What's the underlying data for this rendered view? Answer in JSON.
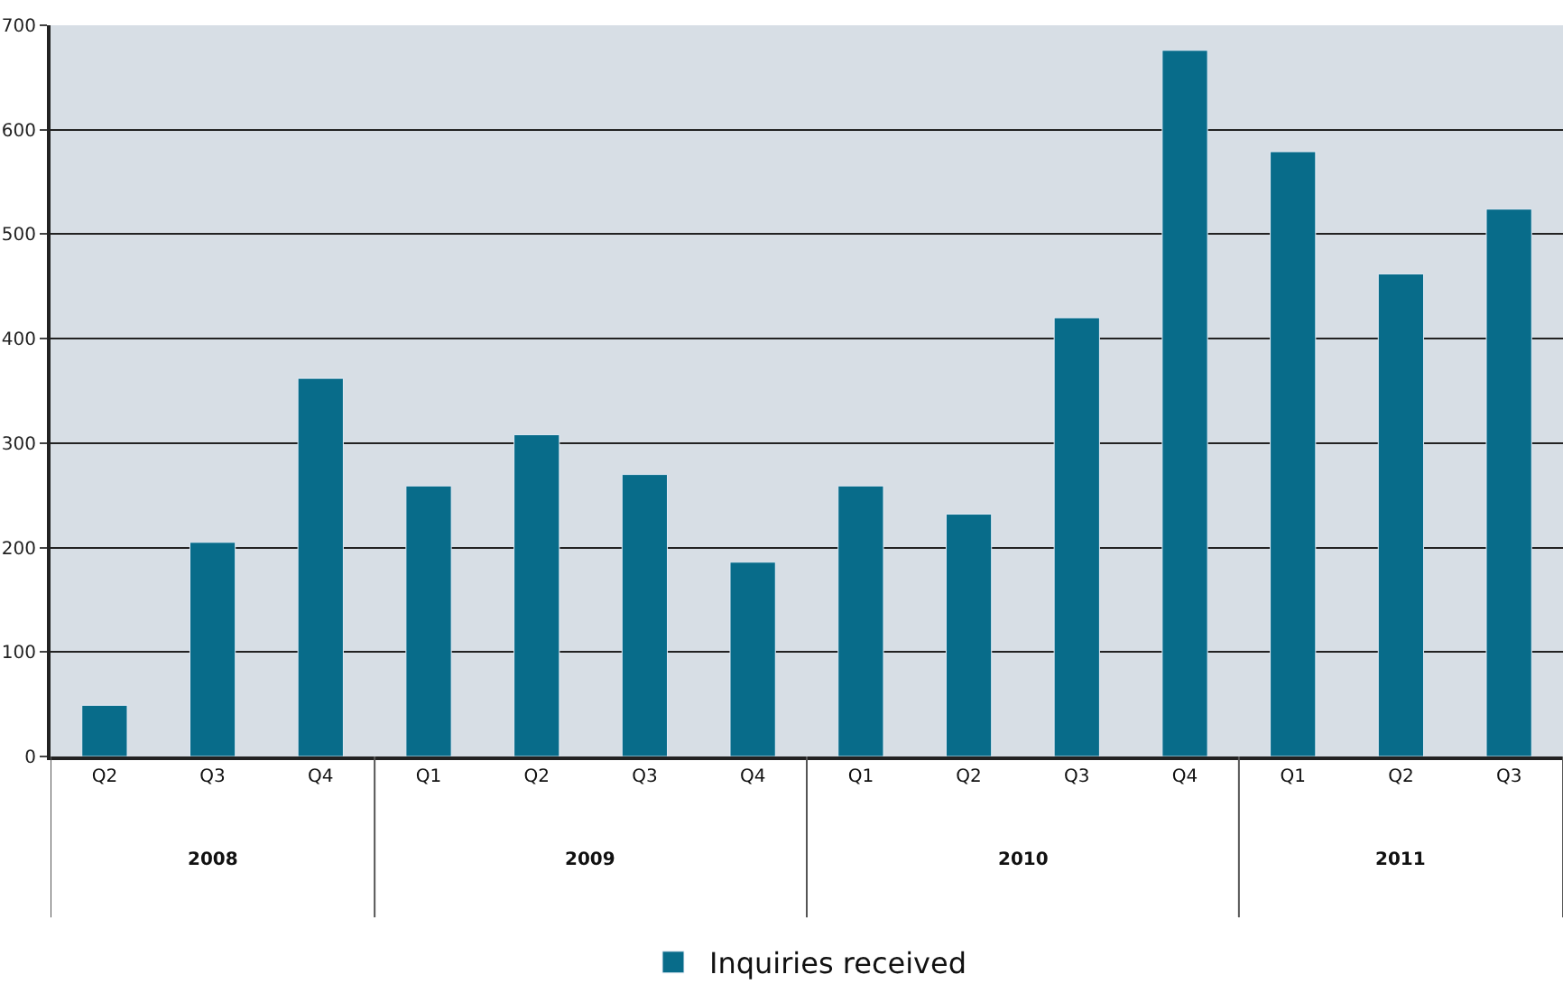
{
  "chart_data": {
    "type": "bar",
    "categories": [
      "Q2",
      "Q3",
      "Q4",
      "Q1",
      "Q2",
      "Q3",
      "Q4",
      "Q1",
      "Q2",
      "Q3",
      "Q4",
      "Q1",
      "Q2",
      "Q3"
    ],
    "series": [
      {
        "name": "Inquiries received",
        "color": "#086c8a",
        "values": [
          49,
          205,
          362,
          259,
          308,
          270,
          186,
          259,
          232,
          420,
          676,
          579,
          462,
          524
        ]
      }
    ],
    "ylim": [
      0,
      700
    ],
    "yticks": [
      0,
      100,
      200,
      300,
      400,
      500,
      600,
      700
    ],
    "grid": "y",
    "legend": "bottom",
    "annotations": [
      "2008",
      "2009",
      "2010",
      "2011"
    ]
  }
}
